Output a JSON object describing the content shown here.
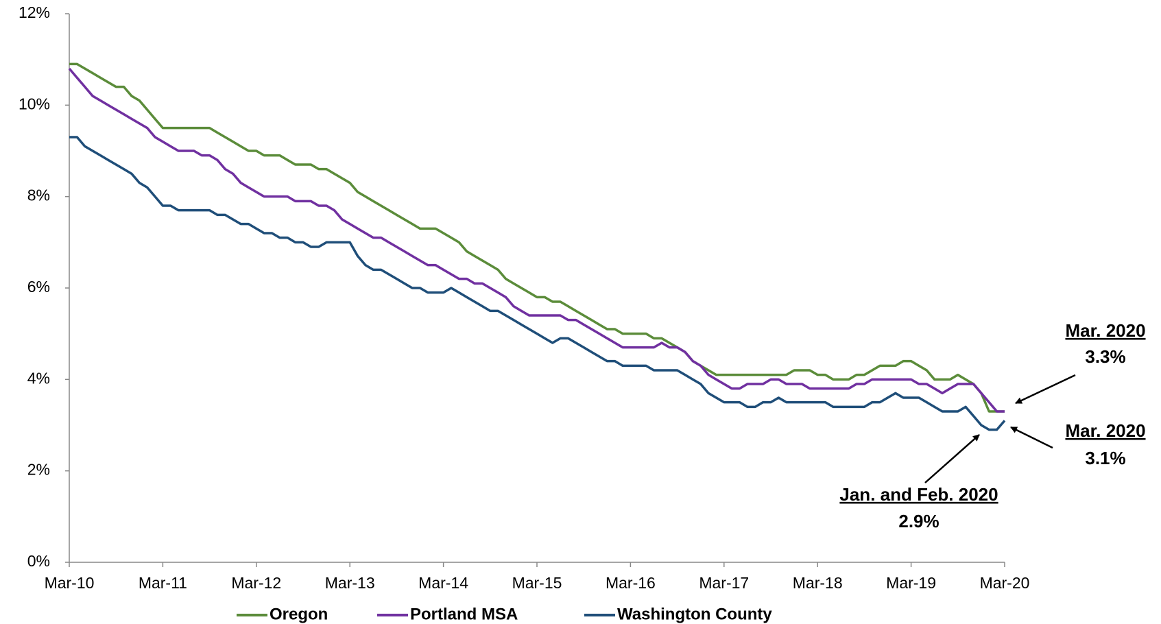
{
  "chart_data": {
    "type": "line",
    "categories": [
      "Mar-10",
      null,
      null,
      null,
      null,
      null,
      null,
      null,
      null,
      null,
      null,
      null,
      "Mar-11",
      null,
      null,
      null,
      null,
      null,
      null,
      null,
      null,
      null,
      null,
      null,
      "Mar-12",
      null,
      null,
      null,
      null,
      null,
      null,
      null,
      null,
      null,
      null,
      null,
      "Mar-13",
      null,
      null,
      null,
      null,
      null,
      null,
      null,
      null,
      null,
      null,
      null,
      "Mar-14",
      null,
      null,
      null,
      null,
      null,
      null,
      null,
      null,
      null,
      null,
      null,
      "Mar-15",
      null,
      null,
      null,
      null,
      null,
      null,
      null,
      null,
      null,
      null,
      null,
      "Mar-16",
      null,
      null,
      null,
      null,
      null,
      null,
      null,
      null,
      null,
      null,
      null,
      "Mar-17",
      null,
      null,
      null,
      null,
      null,
      null,
      null,
      null,
      null,
      null,
      null,
      "Mar-18",
      null,
      null,
      null,
      null,
      null,
      null,
      null,
      null,
      null,
      null,
      null,
      "Mar-19",
      null,
      null,
      null,
      null,
      null,
      null,
      null,
      null,
      null,
      null,
      null,
      "Mar-20"
    ],
    "series": [
      {
        "name": "Oregon",
        "color": "#5b8c3a",
        "values": [
          10.9,
          10.9,
          10.8,
          10.7,
          10.6,
          10.5,
          10.4,
          10.4,
          10.2,
          10.1,
          9.9,
          9.7,
          9.5,
          9.5,
          9.5,
          9.5,
          9.5,
          9.5,
          9.5,
          9.4,
          9.3,
          9.2,
          9.1,
          9.0,
          9.0,
          8.9,
          8.9,
          8.9,
          8.8,
          8.7,
          8.7,
          8.7,
          8.6,
          8.6,
          8.5,
          8.4,
          8.3,
          8.1,
          8.0,
          7.9,
          7.8,
          7.7,
          7.6,
          7.5,
          7.4,
          7.3,
          7.3,
          7.3,
          7.2,
          7.1,
          7.0,
          6.8,
          6.7,
          6.6,
          6.5,
          6.4,
          6.2,
          6.1,
          6.0,
          5.9,
          5.8,
          5.8,
          5.7,
          5.7,
          5.6,
          5.5,
          5.4,
          5.3,
          5.2,
          5.1,
          5.1,
          5.0,
          5.0,
          5.0,
          5.0,
          4.9,
          4.9,
          4.8,
          4.7,
          4.6,
          4.4,
          4.3,
          4.2,
          4.1,
          4.1,
          4.1,
          4.1,
          4.1,
          4.1,
          4.1,
          4.1,
          4.1,
          4.1,
          4.2,
          4.2,
          4.2,
          4.1,
          4.1,
          4.0,
          4.0,
          4.0,
          4.1,
          4.1,
          4.2,
          4.3,
          4.3,
          4.3,
          4.4,
          4.4,
          4.3,
          4.2,
          4.0,
          4.0,
          4.0,
          4.1,
          4.0,
          3.9,
          3.7,
          3.3,
          3.3,
          3.3
        ]
      },
      {
        "name": "Portland MSA",
        "color": "#7030a0",
        "values": [
          10.8,
          10.6,
          10.4,
          10.2,
          10.1,
          10.0,
          9.9,
          9.8,
          9.7,
          9.6,
          9.5,
          9.3,
          9.2,
          9.1,
          9.0,
          9.0,
          9.0,
          8.9,
          8.9,
          8.8,
          8.6,
          8.5,
          8.3,
          8.2,
          8.1,
          8.0,
          8.0,
          8.0,
          8.0,
          7.9,
          7.9,
          7.9,
          7.8,
          7.8,
          7.7,
          7.5,
          7.4,
          7.3,
          7.2,
          7.1,
          7.1,
          7.0,
          6.9,
          6.8,
          6.7,
          6.6,
          6.5,
          6.5,
          6.4,
          6.3,
          6.2,
          6.2,
          6.1,
          6.1,
          6.0,
          5.9,
          5.8,
          5.6,
          5.5,
          5.4,
          5.4,
          5.4,
          5.4,
          5.4,
          5.3,
          5.3,
          5.2,
          5.1,
          5.0,
          4.9,
          4.8,
          4.7,
          4.7,
          4.7,
          4.7,
          4.7,
          4.8,
          4.7,
          4.7,
          4.6,
          4.4,
          4.3,
          4.1,
          4.0,
          3.9,
          3.8,
          3.8,
          3.9,
          3.9,
          3.9,
          4.0,
          4.0,
          3.9,
          3.9,
          3.9,
          3.8,
          3.8,
          3.8,
          3.8,
          3.8,
          3.8,
          3.9,
          3.9,
          4.0,
          4.0,
          4.0,
          4.0,
          4.0,
          4.0,
          3.9,
          3.9,
          3.8,
          3.7,
          3.8,
          3.9,
          3.9,
          3.9,
          3.7,
          3.5,
          3.3,
          3.3
        ]
      },
      {
        "name": "Washington County",
        "color": "#1f4e79",
        "values": [
          9.3,
          9.3,
          9.1,
          9.0,
          8.9,
          8.8,
          8.7,
          8.6,
          8.5,
          8.3,
          8.2,
          8.0,
          7.8,
          7.8,
          7.7,
          7.7,
          7.7,
          7.7,
          7.7,
          7.6,
          7.6,
          7.5,
          7.4,
          7.4,
          7.3,
          7.2,
          7.2,
          7.1,
          7.1,
          7.0,
          7.0,
          6.9,
          6.9,
          7.0,
          7.0,
          7.0,
          7.0,
          6.7,
          6.5,
          6.4,
          6.4,
          6.3,
          6.2,
          6.1,
          6.0,
          6.0,
          5.9,
          5.9,
          5.9,
          6.0,
          5.9,
          5.8,
          5.7,
          5.6,
          5.5,
          5.5,
          5.4,
          5.3,
          5.2,
          5.1,
          5.0,
          4.9,
          4.8,
          4.9,
          4.9,
          4.8,
          4.7,
          4.6,
          4.5,
          4.4,
          4.4,
          4.3,
          4.3,
          4.3,
          4.3,
          4.2,
          4.2,
          4.2,
          4.2,
          4.1,
          4.0,
          3.9,
          3.7,
          3.6,
          3.5,
          3.5,
          3.5,
          3.4,
          3.4,
          3.5,
          3.5,
          3.6,
          3.5,
          3.5,
          3.5,
          3.5,
          3.5,
          3.5,
          3.4,
          3.4,
          3.4,
          3.4,
          3.4,
          3.5,
          3.5,
          3.6,
          3.7,
          3.6,
          3.6,
          3.6,
          3.5,
          3.4,
          3.3,
          3.3,
          3.3,
          3.4,
          3.2,
          3.0,
          2.9,
          2.9,
          3.1
        ]
      }
    ],
    "ylim": [
      0,
      12
    ],
    "yticks": [
      {
        "value": 0,
        "label": "0%"
      },
      {
        "value": 2,
        "label": "2%"
      },
      {
        "value": 4,
        "label": "4%"
      },
      {
        "value": 6,
        "label": "6%"
      },
      {
        "value": 8,
        "label": "8%"
      },
      {
        "value": 10,
        "label": "10%"
      },
      {
        "value": 12,
        "label": "12%"
      }
    ],
    "grid": false,
    "legend": "bottom",
    "annotations": [
      {
        "title": "Mar. 2020",
        "text": "3.3%"
      },
      {
        "title": "Mar. 2020",
        "text": "3.1%"
      },
      {
        "title": "Jan. and Feb. 2020",
        "text": "2.9%"
      }
    ]
  }
}
